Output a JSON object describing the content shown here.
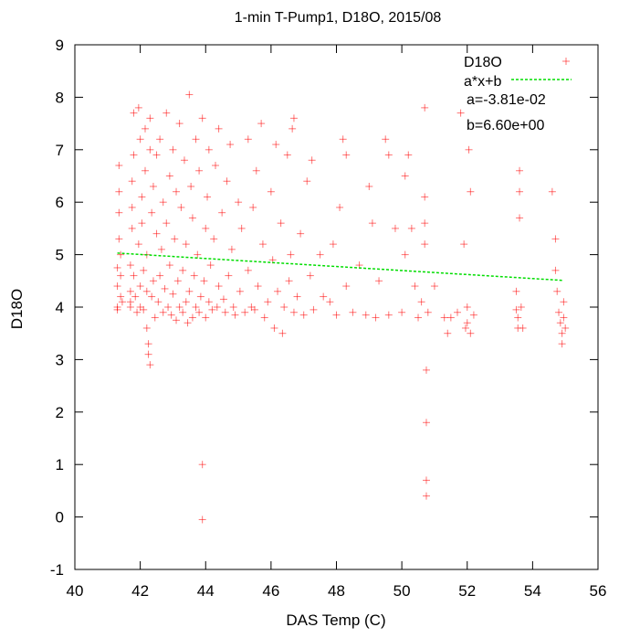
{
  "chart_data": {
    "type": "scatter",
    "title": "1-min T-Pump1, D18O, 2015/08",
    "xlabel": "DAS Temp (C)",
    "ylabel": "D18O",
    "xlim": [
      40,
      56
    ],
    "ylim": [
      -1,
      9
    ],
    "xticks": [
      "40",
      "42",
      "44",
      "46",
      "48",
      "50",
      "52",
      "54",
      "56"
    ],
    "yticks": [
      "-1",
      "0",
      "1",
      "2",
      "3",
      "4",
      "5",
      "6",
      "7",
      "8",
      "9"
    ],
    "grid": false,
    "legend_position": "top-right",
    "series": [
      {
        "name": "D18O",
        "kind": "points",
        "color": "#ff0000",
        "marker": "plus",
        "points": [
          [
            41.3,
            4.75
          ],
          [
            41.3,
            4.4
          ],
          [
            41.3,
            4.0
          ],
          [
            41.3,
            3.95
          ],
          [
            41.35,
            5.3
          ],
          [
            41.35,
            5.8
          ],
          [
            41.35,
            6.2
          ],
          [
            41.35,
            6.7
          ],
          [
            41.4,
            4.6
          ],
          [
            41.4,
            4.2
          ],
          [
            41.4,
            5.0
          ],
          [
            41.45,
            4.1
          ],
          [
            41.7,
            4.8
          ],
          [
            41.7,
            4.3
          ],
          [
            41.7,
            4.1
          ],
          [
            41.7,
            4.0
          ],
          [
            41.75,
            5.5
          ],
          [
            41.75,
            5.9
          ],
          [
            41.75,
            6.4
          ],
          [
            41.8,
            7.7
          ],
          [
            41.8,
            6.9
          ],
          [
            41.8,
            4.6
          ],
          [
            41.85,
            4.2
          ],
          [
            41.9,
            3.9
          ],
          [
            41.95,
            5.2
          ],
          [
            41.95,
            7.8
          ],
          [
            42.0,
            4.4
          ],
          [
            42.0,
            4.0
          ],
          [
            42.0,
            7.2
          ],
          [
            42.05,
            5.6
          ],
          [
            42.05,
            6.1
          ],
          [
            42.1,
            4.7
          ],
          [
            42.1,
            3.95
          ],
          [
            42.15,
            6.6
          ],
          [
            42.15,
            7.4
          ],
          [
            42.2,
            4.3
          ],
          [
            42.2,
            5.0
          ],
          [
            42.2,
            3.6
          ],
          [
            42.25,
            3.3
          ],
          [
            42.25,
            3.1
          ],
          [
            42.3,
            2.9
          ],
          [
            42.3,
            7.6
          ],
          [
            42.3,
            7.0
          ],
          [
            42.35,
            4.2
          ],
          [
            42.35,
            5.8
          ],
          [
            42.4,
            6.3
          ],
          [
            42.4,
            4.5
          ],
          [
            42.45,
            3.8
          ],
          [
            42.5,
            5.4
          ],
          [
            42.5,
            6.9
          ],
          [
            42.55,
            4.1
          ],
          [
            42.6,
            4.6
          ],
          [
            42.6,
            7.2
          ],
          [
            42.65,
            5.1
          ],
          [
            42.7,
            3.9
          ],
          [
            42.7,
            6.0
          ],
          [
            42.75,
            4.35
          ],
          [
            42.8,
            7.7
          ],
          [
            42.8,
            5.6
          ],
          [
            42.85,
            4.0
          ],
          [
            42.9,
            4.8
          ],
          [
            42.9,
            6.5
          ],
          [
            42.95,
            3.85
          ],
          [
            43.0,
            4.25
          ],
          [
            43.0,
            7.0
          ],
          [
            43.05,
            5.3
          ],
          [
            43.1,
            3.75
          ],
          [
            43.1,
            6.2
          ],
          [
            43.15,
            4.5
          ],
          [
            43.2,
            7.5
          ],
          [
            43.2,
            4.0
          ],
          [
            43.25,
            5.9
          ],
          [
            43.3,
            3.9
          ],
          [
            43.3,
            4.7
          ],
          [
            43.35,
            6.8
          ],
          [
            43.4,
            4.1
          ],
          [
            43.4,
            5.2
          ],
          [
            43.45,
            3.7
          ],
          [
            43.5,
            8.05
          ],
          [
            43.5,
            4.3
          ],
          [
            43.55,
            6.3
          ],
          [
            43.6,
            3.8
          ],
          [
            43.6,
            5.7
          ],
          [
            43.65,
            4.6
          ],
          [
            43.7,
            7.2
          ],
          [
            43.7,
            4.0
          ],
          [
            43.75,
            5.0
          ],
          [
            43.8,
            3.9
          ],
          [
            43.8,
            6.6
          ],
          [
            43.85,
            4.2
          ],
          [
            43.9,
            7.6
          ],
          [
            43.9,
            1.0
          ],
          [
            43.9,
            -0.05
          ],
          [
            43.95,
            4.5
          ],
          [
            44.0,
            3.8
          ],
          [
            44.0,
            5.5
          ],
          [
            44.05,
            6.1
          ],
          [
            44.1,
            4.1
          ],
          [
            44.1,
            7.0
          ],
          [
            44.15,
            4.8
          ],
          [
            44.2,
            3.95
          ],
          [
            44.25,
            5.3
          ],
          [
            44.3,
            6.7
          ],
          [
            44.35,
            4.0
          ],
          [
            44.4,
            4.4
          ],
          [
            44.4,
            7.4
          ],
          [
            44.5,
            5.8
          ],
          [
            44.55,
            4.15
          ],
          [
            44.6,
            3.9
          ],
          [
            44.65,
            6.4
          ],
          [
            44.7,
            4.6
          ],
          [
            44.75,
            7.1
          ],
          [
            44.8,
            5.1
          ],
          [
            44.85,
            4.0
          ],
          [
            44.9,
            3.85
          ],
          [
            45.0,
            6.0
          ],
          [
            45.05,
            4.3
          ],
          [
            45.1,
            5.5
          ],
          [
            45.2,
            3.9
          ],
          [
            45.3,
            4.7
          ],
          [
            45.3,
            7.2
          ],
          [
            45.4,
            4.0
          ],
          [
            45.45,
            5.9
          ],
          [
            45.5,
            3.95
          ],
          [
            45.55,
            6.6
          ],
          [
            45.6,
            4.4
          ],
          [
            45.7,
            7.5
          ],
          [
            45.75,
            5.2
          ],
          [
            45.8,
            3.8
          ],
          [
            45.9,
            4.1
          ],
          [
            46.0,
            6.2
          ],
          [
            46.05,
            4.9
          ],
          [
            46.1,
            3.6
          ],
          [
            46.15,
            7.1
          ],
          [
            46.2,
            4.3
          ],
          [
            46.3,
            5.6
          ],
          [
            46.35,
            3.5
          ],
          [
            46.4,
            4.0
          ],
          [
            46.5,
            6.9
          ],
          [
            46.55,
            4.5
          ],
          [
            46.6,
            5.0
          ],
          [
            46.65,
            7.4
          ],
          [
            46.7,
            7.6
          ],
          [
            46.7,
            3.9
          ],
          [
            46.8,
            4.2
          ],
          [
            46.9,
            5.4
          ],
          [
            47.0,
            3.85
          ],
          [
            47.1,
            6.4
          ],
          [
            47.2,
            4.6
          ],
          [
            47.25,
            6.8
          ],
          [
            47.3,
            3.95
          ],
          [
            47.5,
            5.0
          ],
          [
            47.6,
            4.2
          ],
          [
            47.8,
            4.1
          ],
          [
            47.9,
            5.2
          ],
          [
            48.0,
            3.85
          ],
          [
            48.1,
            5.9
          ],
          [
            48.2,
            7.2
          ],
          [
            48.3,
            6.9
          ],
          [
            48.3,
            4.4
          ],
          [
            48.5,
            3.9
          ],
          [
            48.7,
            4.8
          ],
          [
            48.9,
            3.85
          ],
          [
            49.0,
            6.3
          ],
          [
            49.1,
            5.6
          ],
          [
            49.2,
            3.8
          ],
          [
            49.3,
            4.5
          ],
          [
            49.5,
            7.2
          ],
          [
            49.6,
            6.9
          ],
          [
            49.6,
            3.85
          ],
          [
            49.8,
            5.5
          ],
          [
            50.0,
            3.9
          ],
          [
            50.1,
            6.5
          ],
          [
            50.1,
            5.0
          ],
          [
            50.2,
            6.9
          ],
          [
            50.3,
            5.5
          ],
          [
            50.4,
            4.4
          ],
          [
            50.5,
            3.8
          ],
          [
            50.6,
            4.1
          ],
          [
            50.7,
            7.8
          ],
          [
            50.7,
            6.1
          ],
          [
            50.7,
            5.6
          ],
          [
            50.7,
            5.2
          ],
          [
            50.75,
            2.8
          ],
          [
            50.75,
            1.8
          ],
          [
            50.75,
            0.7
          ],
          [
            50.75,
            0.4
          ],
          [
            50.8,
            3.9
          ],
          [
            51.0,
            4.4
          ],
          [
            51.3,
            3.8
          ],
          [
            51.4,
            3.5
          ],
          [
            51.5,
            3.8
          ],
          [
            51.7,
            3.9
          ],
          [
            51.8,
            7.7
          ],
          [
            51.9,
            5.2
          ],
          [
            51.95,
            3.6
          ],
          [
            52.0,
            4.0
          ],
          [
            52.0,
            3.7
          ],
          [
            52.05,
            7.0
          ],
          [
            52.1,
            6.2
          ],
          [
            52.1,
            3.5
          ],
          [
            52.2,
            3.85
          ],
          [
            53.5,
            4.3
          ],
          [
            53.5,
            3.95
          ],
          [
            53.55,
            3.8
          ],
          [
            53.55,
            3.6
          ],
          [
            53.6,
            6.6
          ],
          [
            53.6,
            6.2
          ],
          [
            53.6,
            5.7
          ],
          [
            53.65,
            4.0
          ],
          [
            53.7,
            3.6
          ],
          [
            54.6,
            6.2
          ],
          [
            54.7,
            5.3
          ],
          [
            54.7,
            4.7
          ],
          [
            54.75,
            4.3
          ],
          [
            54.8,
            3.9
          ],
          [
            54.85,
            3.7
          ],
          [
            54.9,
            3.5
          ],
          [
            54.9,
            3.3
          ],
          [
            54.95,
            3.8
          ],
          [
            55.0,
            3.6
          ],
          [
            54.95,
            4.1
          ]
        ]
      },
      {
        "name": "a*x+b",
        "kind": "line",
        "color": "#00dd00",
        "dashed": true,
        "x": [
          41.3,
          54.9
        ],
        "y": [
          5.03,
          4.51
        ]
      }
    ],
    "annotations": [
      "a=-3.81e-02",
      "b=6.60e+00"
    ]
  }
}
